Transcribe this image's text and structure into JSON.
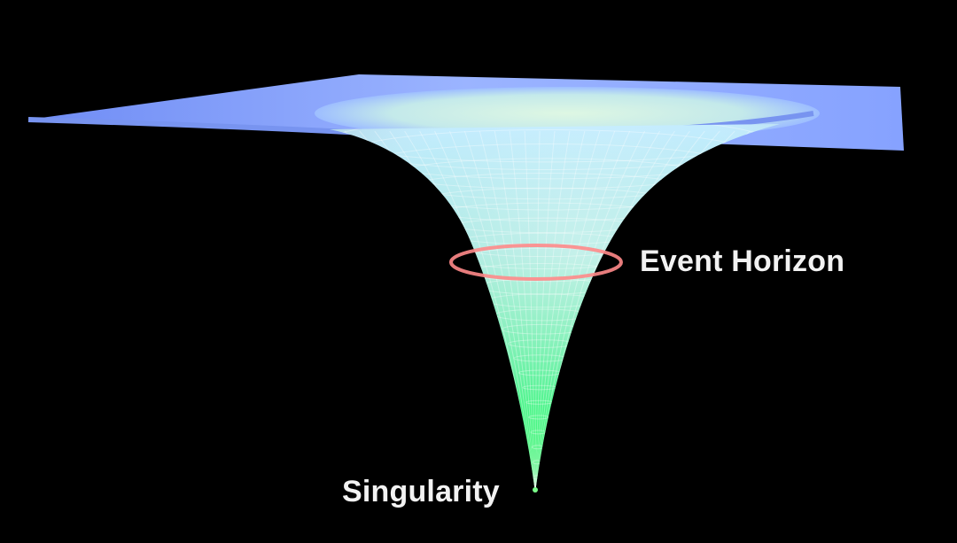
{
  "labels": {
    "event_horizon": "Event Horizon",
    "singularity": "Singularity"
  },
  "colors": {
    "background": "#000000",
    "plane": "#8fa8ff",
    "funnel_top": "#b9e6ff",
    "funnel_bottom": "#18ff5a",
    "horizon_ring": "#ff8a8a",
    "label_text": "#f2f2f2"
  }
}
